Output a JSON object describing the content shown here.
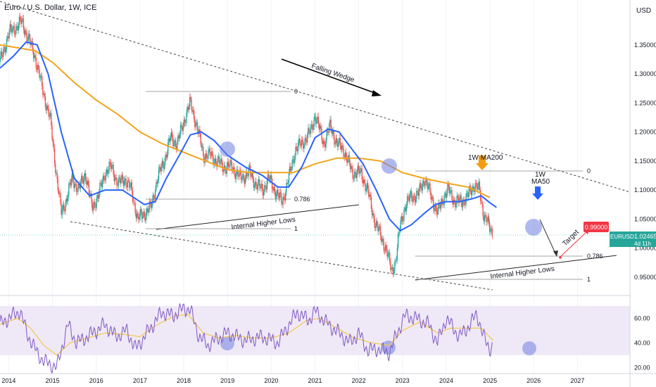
{
  "header": {
    "title": "Euro / U.S. Dollar, 1W, ICE",
    "currency": "USD"
  },
  "chart_data": {
    "type": "line",
    "title": "Euro / U.S. Dollar, 1W, ICE",
    "x_unit": "year",
    "xlim": [
      2013.8,
      2028.2
    ],
    "ylim": [
      0.928,
      1.42
    ],
    "x_ticks": [
      "2014",
      "2015",
      "2016",
      "2017",
      "2018",
      "2019",
      "2020",
      "2021",
      "2022",
      "2023",
      "2024",
      "2025",
      "2026",
      "2027"
    ],
    "y_ticks": [
      "1.35000",
      "1.30000",
      "1.25000",
      "1.20000",
      "1.15000",
      "1.10000",
      "1.05000",
      "1.00000",
      "0.95000"
    ],
    "price_path": [
      [
        2013.8,
        1.32
      ],
      [
        2014.0,
        1.37
      ],
      [
        2014.15,
        1.38
      ],
      [
        2014.3,
        1.39
      ],
      [
        2014.45,
        1.36
      ],
      [
        2014.6,
        1.33
      ],
      [
        2014.75,
        1.28
      ],
      [
        2014.95,
        1.22
      ],
      [
        2015.1,
        1.12
      ],
      [
        2015.2,
        1.06
      ],
      [
        2015.3,
        1.08
      ],
      [
        2015.45,
        1.12
      ],
      [
        2015.6,
        1.1
      ],
      [
        2015.75,
        1.13
      ],
      [
        2015.9,
        1.07
      ],
      [
        2016.05,
        1.09
      ],
      [
        2016.2,
        1.13
      ],
      [
        2016.35,
        1.14
      ],
      [
        2016.5,
        1.11
      ],
      [
        2016.65,
        1.12
      ],
      [
        2016.8,
        1.1
      ],
      [
        2016.95,
        1.05
      ],
      [
        2017.1,
        1.06
      ],
      [
        2017.25,
        1.07
      ],
      [
        2017.4,
        1.12
      ],
      [
        2017.55,
        1.15
      ],
      [
        2017.7,
        1.19
      ],
      [
        2017.85,
        1.18
      ],
      [
        2018.05,
        1.23
      ],
      [
        2018.15,
        1.25
      ],
      [
        2018.3,
        1.21
      ],
      [
        2018.45,
        1.16
      ],
      [
        2018.6,
        1.16
      ],
      [
        2018.75,
        1.15
      ],
      [
        2018.9,
        1.14
      ],
      [
        2019.1,
        1.14
      ],
      [
        2019.3,
        1.12
      ],
      [
        2019.5,
        1.13
      ],
      [
        2019.65,
        1.11
      ],
      [
        2019.8,
        1.1
      ],
      [
        2019.95,
        1.12
      ],
      [
        2020.15,
        1.09
      ],
      [
        2020.25,
        1.08
      ],
      [
        2020.4,
        1.12
      ],
      [
        2020.55,
        1.17
      ],
      [
        2020.7,
        1.18
      ],
      [
        2020.9,
        1.2
      ],
      [
        2021.0,
        1.23
      ],
      [
        2021.2,
        1.18
      ],
      [
        2021.35,
        1.21
      ],
      [
        2021.5,
        1.18
      ],
      [
        2021.65,
        1.17
      ],
      [
        2021.85,
        1.13
      ],
      [
        2022.05,
        1.13
      ],
      [
        2022.2,
        1.1
      ],
      [
        2022.35,
        1.05
      ],
      [
        2022.5,
        1.02
      ],
      [
        2022.62,
        1.0
      ],
      [
        2022.75,
        0.96
      ],
      [
        2022.85,
        0.98
      ],
      [
        2022.95,
        1.04
      ],
      [
        2023.05,
        1.07
      ],
      [
        2023.2,
        1.09
      ],
      [
        2023.35,
        1.09
      ],
      [
        2023.5,
        1.12
      ],
      [
        2023.65,
        1.09
      ],
      [
        2023.8,
        1.06
      ],
      [
        2023.95,
        1.09
      ],
      [
        2024.05,
        1.1
      ],
      [
        2024.2,
        1.08
      ],
      [
        2024.35,
        1.08
      ],
      [
        2024.5,
        1.09
      ],
      [
        2024.65,
        1.11
      ],
      [
        2024.75,
        1.1
      ],
      [
        2024.85,
        1.06
      ],
      [
        2024.92,
        1.05
      ],
      [
        2025.0,
        1.03
      ],
      [
        2025.07,
        1.025
      ]
    ],
    "series": [
      {
        "name": "1W MA200",
        "color": "#f2a41b",
        "values": [
          [
            2013.8,
            1.35
          ],
          [
            2014.2,
            1.345
          ],
          [
            2014.6,
            1.34
          ],
          [
            2015.0,
            1.32
          ],
          [
            2015.5,
            1.285
          ],
          [
            2016.0,
            1.255
          ],
          [
            2016.5,
            1.23
          ],
          [
            2017.0,
            1.2
          ],
          [
            2017.5,
            1.18
          ],
          [
            2018.0,
            1.165
          ],
          [
            2018.5,
            1.15
          ],
          [
            2019.0,
            1.135
          ],
          [
            2019.5,
            1.13
          ],
          [
            2020.0,
            1.13
          ],
          [
            2020.5,
            1.13
          ],
          [
            2021.0,
            1.145
          ],
          [
            2021.5,
            1.155
          ],
          [
            2022.0,
            1.155
          ],
          [
            2022.5,
            1.15
          ],
          [
            2023.0,
            1.13
          ],
          [
            2023.5,
            1.12
          ],
          [
            2024.0,
            1.112
          ],
          [
            2024.5,
            1.105
          ],
          [
            2025.0,
            1.087
          ]
        ]
      },
      {
        "name": "1W MA50",
        "color": "#2962ff",
        "values": [
          [
            2013.8,
            1.31
          ],
          [
            2014.1,
            1.33
          ],
          [
            2014.4,
            1.355
          ],
          [
            2014.65,
            1.35
          ],
          [
            2014.9,
            1.3
          ],
          [
            2015.2,
            1.2
          ],
          [
            2015.5,
            1.12
          ],
          [
            2015.85,
            1.09
          ],
          [
            2016.2,
            1.1
          ],
          [
            2016.6,
            1.1
          ],
          [
            2016.9,
            1.085
          ],
          [
            2017.1,
            1.075
          ],
          [
            2017.35,
            1.08
          ],
          [
            2017.6,
            1.12
          ],
          [
            2017.9,
            1.16
          ],
          [
            2018.15,
            1.195
          ],
          [
            2018.4,
            1.2
          ],
          [
            2018.7,
            1.185
          ],
          [
            2019.0,
            1.16
          ],
          [
            2019.4,
            1.14
          ],
          [
            2019.8,
            1.125
          ],
          [
            2020.15,
            1.105
          ],
          [
            2020.4,
            1.105
          ],
          [
            2020.7,
            1.14
          ],
          [
            2021.0,
            1.19
          ],
          [
            2021.3,
            1.205
          ],
          [
            2021.55,
            1.2
          ],
          [
            2021.8,
            1.175
          ],
          [
            2022.1,
            1.145
          ],
          [
            2022.4,
            1.1
          ],
          [
            2022.7,
            1.05
          ],
          [
            2022.95,
            1.03
          ],
          [
            2023.2,
            1.04
          ],
          [
            2023.5,
            1.06
          ],
          [
            2023.75,
            1.075
          ],
          [
            2024.0,
            1.08
          ],
          [
            2024.3,
            1.08
          ],
          [
            2024.6,
            1.085
          ],
          [
            2024.8,
            1.09
          ],
          [
            2025.0,
            1.078
          ],
          [
            2025.15,
            1.07
          ]
        ]
      },
      {
        "name": "RSI",
        "color": "#7e57c2",
        "values": [
          [
            2013.8,
            55
          ],
          [
            2014.0,
            60
          ],
          [
            2014.25,
            66
          ],
          [
            2014.45,
            45
          ],
          [
            2014.65,
            32
          ],
          [
            2014.8,
            25
          ],
          [
            2015.1,
            20
          ],
          [
            2015.35,
            55
          ],
          [
            2015.55,
            40
          ],
          [
            2015.8,
            45
          ],
          [
            2016.0,
            50
          ],
          [
            2016.2,
            55
          ],
          [
            2016.45,
            45
          ],
          [
            2016.7,
            50
          ],
          [
            2016.9,
            35
          ],
          [
            2017.2,
            50
          ],
          [
            2017.5,
            65
          ],
          [
            2017.75,
            62
          ],
          [
            2018.0,
            68
          ],
          [
            2018.15,
            67
          ],
          [
            2018.35,
            45
          ],
          [
            2018.55,
            38
          ],
          [
            2018.8,
            44
          ],
          [
            2019.0,
            48
          ],
          [
            2019.4,
            42
          ],
          [
            2019.8,
            45
          ],
          [
            2020.15,
            40
          ],
          [
            2020.35,
            52
          ],
          [
            2020.6,
            65
          ],
          [
            2020.85,
            58
          ],
          [
            2021.0,
            66
          ],
          [
            2021.3,
            55
          ],
          [
            2021.55,
            48
          ],
          [
            2021.8,
            40
          ],
          [
            2022.0,
            48
          ],
          [
            2022.2,
            34
          ],
          [
            2022.45,
            35
          ],
          [
            2022.7,
            32
          ],
          [
            2022.85,
            45
          ],
          [
            2023.05,
            62
          ],
          [
            2023.3,
            60
          ],
          [
            2023.6,
            55
          ],
          [
            2023.8,
            40
          ],
          [
            2024.0,
            60
          ],
          [
            2024.3,
            45
          ],
          [
            2024.55,
            55
          ],
          [
            2024.7,
            64
          ],
          [
            2024.85,
            45
          ],
          [
            2025.0,
            35
          ],
          [
            2025.07,
            38
          ]
        ]
      },
      {
        "name": "RSI MA",
        "color": "#f4c64a",
        "values": [
          [
            2013.8,
            55
          ],
          [
            2014.2,
            60
          ],
          [
            2014.5,
            52
          ],
          [
            2014.8,
            38
          ],
          [
            2015.1,
            30
          ],
          [
            2015.4,
            40
          ],
          [
            2015.8,
            44
          ],
          [
            2016.2,
            48
          ],
          [
            2016.6,
            47
          ],
          [
            2017.0,
            45
          ],
          [
            2017.4,
            55
          ],
          [
            2017.8,
            62
          ],
          [
            2018.1,
            63
          ],
          [
            2018.45,
            48
          ],
          [
            2018.8,
            44
          ],
          [
            2019.2,
            46
          ],
          [
            2019.6,
            44
          ],
          [
            2020.0,
            44
          ],
          [
            2020.4,
            48
          ],
          [
            2020.8,
            58
          ],
          [
            2021.1,
            60
          ],
          [
            2021.5,
            52
          ],
          [
            2021.9,
            44
          ],
          [
            2022.3,
            40
          ],
          [
            2022.7,
            38
          ],
          [
            2023.0,
            50
          ],
          [
            2023.4,
            57
          ],
          [
            2023.8,
            48
          ],
          [
            2024.1,
            52
          ],
          [
            2024.5,
            52
          ],
          [
            2024.8,
            52
          ],
          [
            2025.07,
            42
          ]
        ]
      }
    ],
    "rsi_ylim": [
      15,
      75
    ],
    "rsi_ticks": [
      "60.00",
      "40.00",
      "20.00"
    ],
    "rsi_band": [
      30,
      70
    ],
    "annotations": {
      "falling_wedge": "Falling Wedge",
      "internal_higher_lows_1": "Internal Higher Lows",
      "internal_higher_lows_2": "Internal Higher Lows",
      "ma200_label": "1W MA200",
      "ma50_label_1": "1W",
      "ma50_label_2": "MA50",
      "target": "Target"
    },
    "fib_levels_1": {
      "0": 1.255,
      "0.786": 1.082,
      "1": 1.035
    },
    "fib_levels_2": {
      "0": 1.125,
      "0.786": 0.99,
      "1": 0.955
    },
    "fib_labels": [
      "0",
      "0.786",
      "1",
      "0",
      "0.786",
      "1"
    ],
    "target_price": "0.99000",
    "current_price": "1.02465",
    "symbol": "EURUSD",
    "countdown": "4d 11h"
  },
  "colors": {
    "ma200": "#f2a41b",
    "ma50": "#2962ff",
    "rsi": "#7e57c2",
    "rsi_ma": "#f4c64a",
    "rsi_band": "#ede7f6",
    "circle_fill": "#6f7fe0",
    "target_badge": "#f23645",
    "price_badge": "#26a69a",
    "candle_up": "#26a69a",
    "candle_down": "#ef5350"
  }
}
